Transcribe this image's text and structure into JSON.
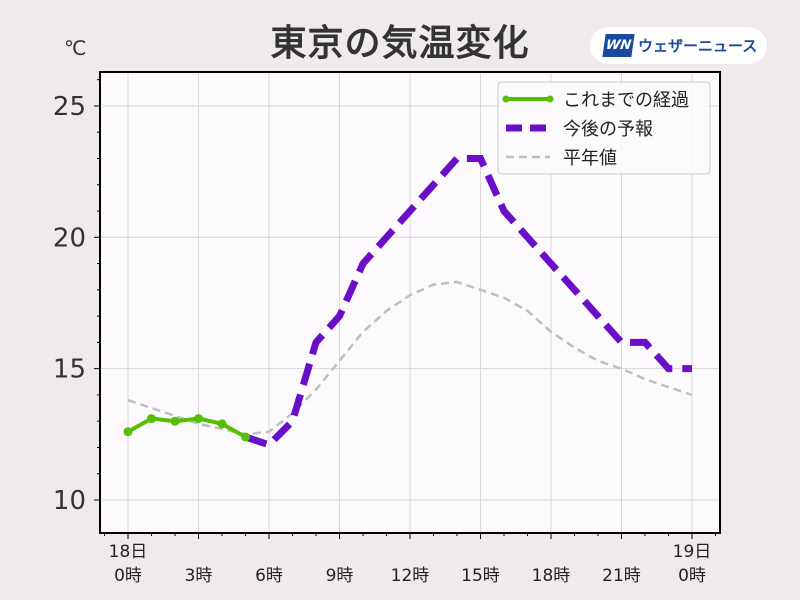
{
  "chart_data": {
    "type": "line",
    "title": "東京の気温変化",
    "unit_label": "℃",
    "ylim": [
      9,
      26.3
    ],
    "xlim": [
      -1.2,
      25.2
    ],
    "y_ticks": [
      10,
      15,
      20,
      25
    ],
    "x_ticks": [
      {
        "x": 0,
        "line1": "18日",
        "line2": "0時"
      },
      {
        "x": 3,
        "line1": "",
        "line2": "3時"
      },
      {
        "x": 6,
        "line1": "",
        "line2": "6時"
      },
      {
        "x": 9,
        "line1": "",
        "line2": "9時"
      },
      {
        "x": 12,
        "line1": "",
        "line2": "12時"
      },
      {
        "x": 15,
        "line1": "",
        "line2": "15時"
      },
      {
        "x": 18,
        "line1": "",
        "line2": "18時"
      },
      {
        "x": 21,
        "line1": "",
        "line2": "21時"
      },
      {
        "x": 24,
        "line1": "19日",
        "line2": "0時"
      }
    ],
    "grid": true,
    "legend_position": "top-right",
    "series": [
      {
        "name": "これまでの経過",
        "color": "#55c000",
        "style": "solid-markers",
        "x": [
          0,
          1,
          2,
          3,
          4,
          5
        ],
        "y": [
          12.6,
          13.1,
          13.0,
          13.1,
          12.9,
          12.4
        ]
      },
      {
        "name": "今後の予報",
        "color": "#6a0fc8",
        "style": "dashed-thick",
        "x": [
          5,
          6,
          7,
          8,
          9,
          10,
          11,
          12,
          13,
          14,
          15,
          16,
          17,
          18,
          19,
          20,
          21,
          22,
          23,
          24
        ],
        "y": [
          12.4,
          12.1,
          13.0,
          16.0,
          17.0,
          19.0,
          20.0,
          21.0,
          22.0,
          23.0,
          23.0,
          21.0,
          20.0,
          19.0,
          18.0,
          17.0,
          16.0,
          16.0,
          15.0,
          15.0
        ]
      },
      {
        "name": "平年値",
        "color": "#c0bec0",
        "style": "dashed-thin",
        "x": [
          0,
          1,
          2,
          3,
          4,
          5,
          6,
          7,
          8,
          9,
          10,
          11,
          12,
          13,
          14,
          15,
          16,
          17,
          18,
          19,
          20,
          21,
          22,
          23,
          24
        ],
        "y": [
          13.8,
          13.5,
          13.2,
          12.9,
          12.7,
          12.5,
          12.6,
          13.3,
          14.2,
          15.3,
          16.4,
          17.2,
          17.8,
          18.2,
          18.3,
          18.0,
          17.7,
          17.2,
          16.4,
          15.8,
          15.3,
          15.0,
          14.6,
          14.3,
          14.0
        ]
      }
    ]
  },
  "logo": {
    "mark": "WN",
    "text": "ウェザーニュース"
  }
}
